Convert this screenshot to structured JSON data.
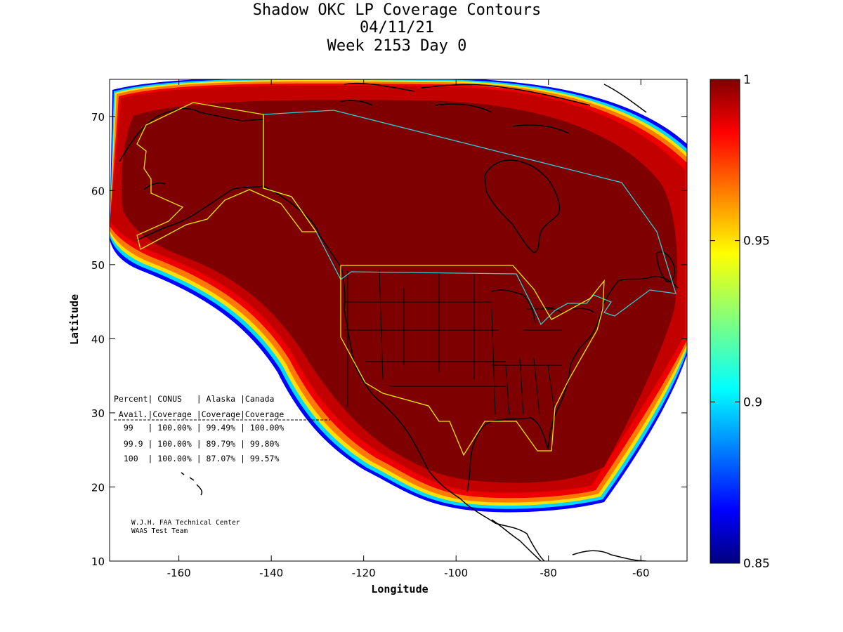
{
  "title": {
    "line1": "Shadow OKC LP Coverage Contours",
    "line2": "04/11/21",
    "line3": "Week 2153 Day 0"
  },
  "axes": {
    "xlabel": "Longitude",
    "ylabel": "Latitude",
    "xlim": [
      -175,
      -50
    ],
    "ylim": [
      10,
      75
    ],
    "xticks": [
      -160,
      -140,
      -120,
      -100,
      -80,
      -60
    ],
    "yticks": [
      10,
      20,
      30,
      40,
      50,
      60,
      70
    ],
    "xtick_labels": [
      "-160",
      "-140",
      "-120",
      "-100",
      "-80",
      "-60"
    ],
    "ytick_labels": [
      "10",
      "20",
      "30",
      "40",
      "50",
      "60",
      "70"
    ]
  },
  "colorbar": {
    "range": [
      0.85,
      1
    ],
    "ticks": [
      0.85,
      0.9,
      0.95,
      1
    ],
    "tick_labels": [
      "0.85",
      "0.9",
      "0.95",
      "1"
    ],
    "colormap": "jet"
  },
  "table": {
    "header1": "Percent| CONUS   | Alaska |Canada",
    "header2": " Avail.|Coverage |Coverage|Coverage",
    "rows": [
      "  99   | 100.00% | 99.49% | 100.00%",
      "  99.9 | 100.00% | 89.79% | 99.80%",
      "  100  | 100.00% | 87.07% | 99.57%"
    ]
  },
  "credit": {
    "line1": "W.J.H. FAA Technical Center",
    "line2": "WAAS Test Team"
  },
  "colors": {
    "coverage_full": "#7f0000",
    "conus_alaska_boundary": "#e8e800",
    "canada_boundary": "#33cccc",
    "coastline": "#000000"
  }
}
